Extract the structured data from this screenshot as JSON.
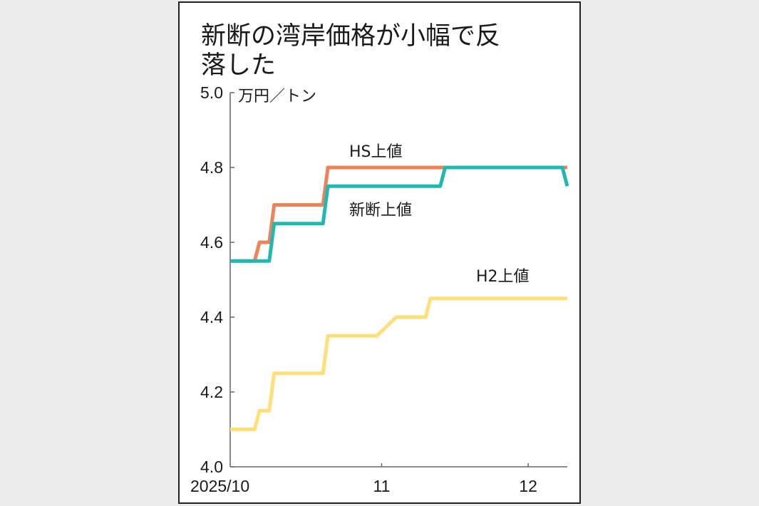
{
  "chart_data": {
    "type": "line",
    "title_lines": [
      "新断の湾岸価格が小幅で反",
      "落した"
    ],
    "ylabel": "万円／トン",
    "xlabel": "",
    "ylim": [
      4.0,
      5.0
    ],
    "yticks": [
      4.0,
      4.2,
      4.4,
      4.6,
      4.8,
      5.0
    ],
    "ytick_labels": [
      "4.0",
      "4.2",
      "4.4",
      "4.6",
      "4.8",
      "5.0"
    ],
    "xlim": [
      "2025-10-01",
      "2025-12-09"
    ],
    "xticks": [
      "2025-10-01",
      "2025-11-01",
      "2025-12-01"
    ],
    "xtick_labels": [
      "2025/10",
      "11",
      "12"
    ],
    "grid": false,
    "series": [
      {
        "name": "HS上値",
        "color": "#F0825A",
        "points": [
          [
            "2025-10-01",
            4.55
          ],
          [
            "2025-10-06",
            4.55
          ],
          [
            "2025-10-07",
            4.6
          ],
          [
            "2025-10-09",
            4.6
          ],
          [
            "2025-10-10",
            4.7
          ],
          [
            "2025-10-20",
            4.7
          ],
          [
            "2025-10-21",
            4.8
          ],
          [
            "2025-12-09",
            4.8
          ]
        ]
      },
      {
        "name": "新断上値",
        "color": "#22B8B2",
        "points": [
          [
            "2025-10-01",
            4.55
          ],
          [
            "2025-10-09",
            4.55
          ],
          [
            "2025-10-10",
            4.65
          ],
          [
            "2025-10-20",
            4.65
          ],
          [
            "2025-10-21",
            4.75
          ],
          [
            "2025-11-13",
            4.75
          ],
          [
            "2025-11-14",
            4.8
          ],
          [
            "2025-12-08",
            4.8
          ],
          [
            "2025-12-09",
            4.75
          ]
        ]
      },
      {
        "name": "H2上値",
        "color": "#FFDF7A",
        "points": [
          [
            "2025-10-01",
            4.1
          ],
          [
            "2025-10-06",
            4.1
          ],
          [
            "2025-10-07",
            4.15
          ],
          [
            "2025-10-09",
            4.15
          ],
          [
            "2025-10-10",
            4.25
          ],
          [
            "2025-10-20",
            4.25
          ],
          [
            "2025-10-21",
            4.35
          ],
          [
            "2025-10-31",
            4.35
          ],
          [
            "2025-11-04",
            4.4
          ],
          [
            "2025-11-10",
            4.4
          ],
          [
            "2025-11-11",
            4.45
          ],
          [
            "2025-12-09",
            4.45
          ]
        ]
      }
    ]
  }
}
